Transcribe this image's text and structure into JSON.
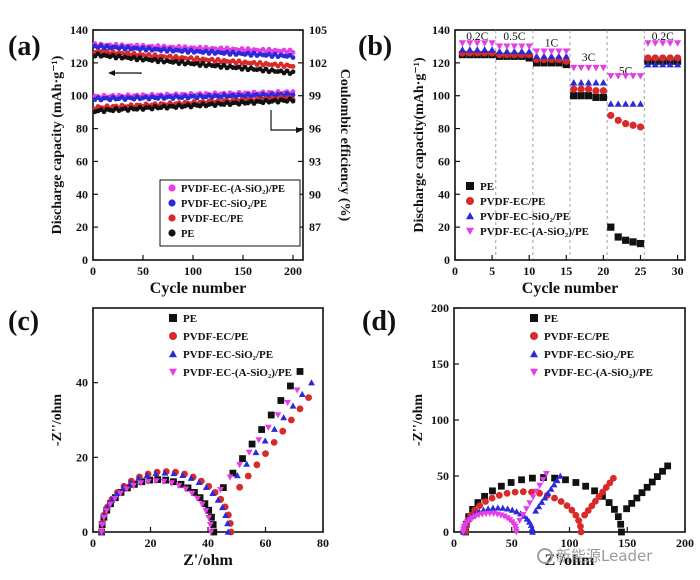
{
  "chart_data": [
    {
      "panel": "(a)",
      "type": "scatter",
      "xlabel": "Cycle  number",
      "ylabel": "Discharge capacity (mAh·g⁻¹)",
      "y2label": "Coulombic efficiency (%)",
      "xlim": [
        0,
        210
      ],
      "ylim": [
        0,
        140
      ],
      "y2lim": [
        84,
        105
      ],
      "xticks": [
        "0",
        "50",
        "100",
        "150",
        "200"
      ],
      "yticks": [
        "0",
        "20",
        "40",
        "60",
        "80",
        "100",
        "120",
        "140"
      ],
      "y2ticks": [
        "87",
        "90",
        "93",
        "96",
        "99",
        "102",
        "105"
      ],
      "legend": [
        "PVDF-EC-(A-SiO₂)/PE",
        "PVDF-EC-SiO₂/PE",
        "PVDF-EC/PE",
        "PE"
      ],
      "legend_position": "bottom-right",
      "colors": [
        "#e63ee6",
        "#2a2ad8",
        "#d82a2a",
        "#111111"
      ],
      "series": [
        {
          "name": "PVDF-EC-(A-SiO₂)/PE",
          "capacity": [
            131,
            127
          ],
          "efficiency": [
            98.9,
            99.3
          ]
        },
        {
          "name": "PVDF-EC-SiO₂/PE",
          "capacity": [
            130,
            124
          ],
          "efficiency": [
            98.7,
            99.1
          ]
        },
        {
          "name": "PVDF-EC/PE",
          "capacity": [
            127,
            118
          ],
          "efficiency": [
            97.9,
            98.8
          ]
        },
        {
          "name": "PE",
          "capacity": [
            125,
            114
          ],
          "efficiency": [
            97.6,
            98.6
          ]
        }
      ]
    },
    {
      "panel": "(b)",
      "type": "scatter",
      "xlabel": "Cycle number",
      "ylabel": "Discharge capacity(mAh·g⁻¹)",
      "xlim": [
        0,
        31
      ],
      "ylim": [
        0,
        140
      ],
      "xticks": [
        "0",
        "5",
        "10",
        "15",
        "20",
        "25",
        "30"
      ],
      "yticks": [
        "0",
        "20",
        "40",
        "60",
        "80",
        "100",
        "120",
        "140"
      ],
      "rate_labels": [
        "0.2C",
        "0.5C",
        "1C",
        "3C",
        "5C",
        "0.2C"
      ],
      "legend": [
        "PE",
        "PVDF-EC/PE",
        "PVDF-EC-SiO₂/PE",
        "PVDF-EC-(A-SiO₂)/PE"
      ],
      "legend_position": "bottom-left",
      "colors": [
        "#111111",
        "#d82a2a",
        "#2a2ad8",
        "#e63ee6"
      ],
      "x": [
        1,
        2,
        3,
        4,
        5,
        6,
        7,
        8,
        9,
        10,
        11,
        12,
        13,
        14,
        15,
        16,
        17,
        18,
        19,
        20,
        21,
        22,
        23,
        24,
        25,
        26,
        27,
        28,
        29,
        30
      ],
      "series": [
        {
          "name": "PE",
          "values": [
            125,
            125,
            125,
            125,
            125,
            124,
            124,
            124,
            124,
            123,
            120,
            120,
            120,
            120,
            119,
            100,
            100,
            100,
            99,
            99,
            20,
            14,
            12,
            11,
            10,
            121,
            121,
            121,
            121,
            121
          ]
        },
        {
          "name": "PVDF-EC/PE",
          "values": [
            126,
            126,
            126,
            126,
            126,
            125,
            125,
            125,
            125,
            125,
            122,
            122,
            122,
            122,
            121,
            104,
            104,
            104,
            103,
            103,
            88,
            85,
            83,
            82,
            81,
            123,
            123,
            123,
            123,
            123
          ]
        },
        {
          "name": "PVDF-EC-SiO₂/PE",
          "values": [
            128,
            128,
            128,
            128,
            128,
            127,
            127,
            127,
            127,
            127,
            124,
            124,
            124,
            124,
            124,
            108,
            108,
            108,
            108,
            108,
            95,
            95,
            95,
            95,
            95,
            119,
            119,
            119,
            119,
            119
          ]
        },
        {
          "name": "PVDF-EC-(A-SiO₂)/PE",
          "values": [
            132,
            132,
            132,
            132,
            132,
            130,
            130,
            130,
            130,
            130,
            127,
            127,
            127,
            127,
            127,
            117,
            117,
            117,
            117,
            117,
            112,
            112,
            112,
            112,
            112,
            132,
            132,
            132,
            132,
            132
          ]
        }
      ]
    },
    {
      "panel": "(c)",
      "type": "scatter",
      "xlabel": "Z'/ohm",
      "ylabel": "-Z''/ohm",
      "xlim": [
        0,
        80
      ],
      "ylim": [
        0,
        60
      ],
      "xticks": [
        "0",
        "20",
        "40",
        "60",
        "80"
      ],
      "yticks": [
        "0",
        "20",
        "40"
      ],
      "legend": [
        "PE",
        "PVDF-EC/PE",
        "PVDF-EC-SiO₂/PE",
        "PVDF-EC-(A-SiO₂)/PE"
      ],
      "legend_position": "top-right",
      "colors": [
        "#111111",
        "#d82a2a",
        "#2a2ad8",
        "#e63ee6"
      ],
      "series": [
        {
          "name": "PE",
          "R0": 3,
          "Rct": 39,
          "tail": [
            [
              42,
              8
            ],
            [
              72,
              43
            ]
          ]
        },
        {
          "name": "PVDF-EC/PE",
          "R0": 3,
          "Rct": 45,
          "tail": [
            [
              48,
              9
            ],
            [
              75,
              36
            ]
          ]
        },
        {
          "name": "PVDF-EC-SiO₂/PE",
          "R0": 3,
          "Rct": 44,
          "tail": [
            [
              47,
              12
            ],
            [
              76,
              40
            ]
          ]
        },
        {
          "name": "PVDF-EC-(A-SiO₂)/PE",
          "R0": 3,
          "Rct": 38,
          "tail": [
            [
              41,
              8
            ],
            [
              71,
              38
            ]
          ]
        }
      ]
    },
    {
      "panel": "(d)",
      "type": "scatter",
      "xlabel": "Z'/ohm",
      "ylabel": "-Z''/ohm",
      "xlim": [
        0,
        200
      ],
      "ylim": [
        0,
        200
      ],
      "xticks": [
        "0",
        "50",
        "100",
        "150",
        "200"
      ],
      "yticks": [
        "0",
        "50",
        "100",
        "150",
        "200"
      ],
      "legend": [
        "PE",
        "PVDF-EC/PE",
        "PVDF-EC-SiO₂/PE",
        "PVDF-EC-(A-SiO₂)/PE"
      ],
      "legend_position": "top-right",
      "colors": [
        "#111111",
        "#d82a2a",
        "#2a2ad8",
        "#e63ee6"
      ],
      "series": [
        {
          "name": "PE",
          "R0": 10,
          "Rct": 135,
          "tail": [
            [
              145,
              16
            ],
            [
              185,
              59
            ]
          ]
        },
        {
          "name": "PVDF-EC/PE",
          "R0": 10,
          "Rct": 100,
          "tail": [
            [
              110,
              11
            ],
            [
              138,
              48
            ]
          ]
        },
        {
          "name": "PVDF-EC-SiO₂/PE",
          "R0": 8,
          "Rct": 60,
          "tail": [
            [
              68,
              15
            ],
            [
              92,
              50
            ]
          ]
        },
        {
          "name": "PVDF-EC-(A-SiO₂)/PE",
          "R0": 8,
          "Rct": 46,
          "tail": [
            [
              54,
              5
            ],
            [
              80,
              52
            ]
          ]
        }
      ]
    }
  ],
  "watermark": {
    "text": "新能源Leader",
    "icon": "wechat-icon"
  }
}
